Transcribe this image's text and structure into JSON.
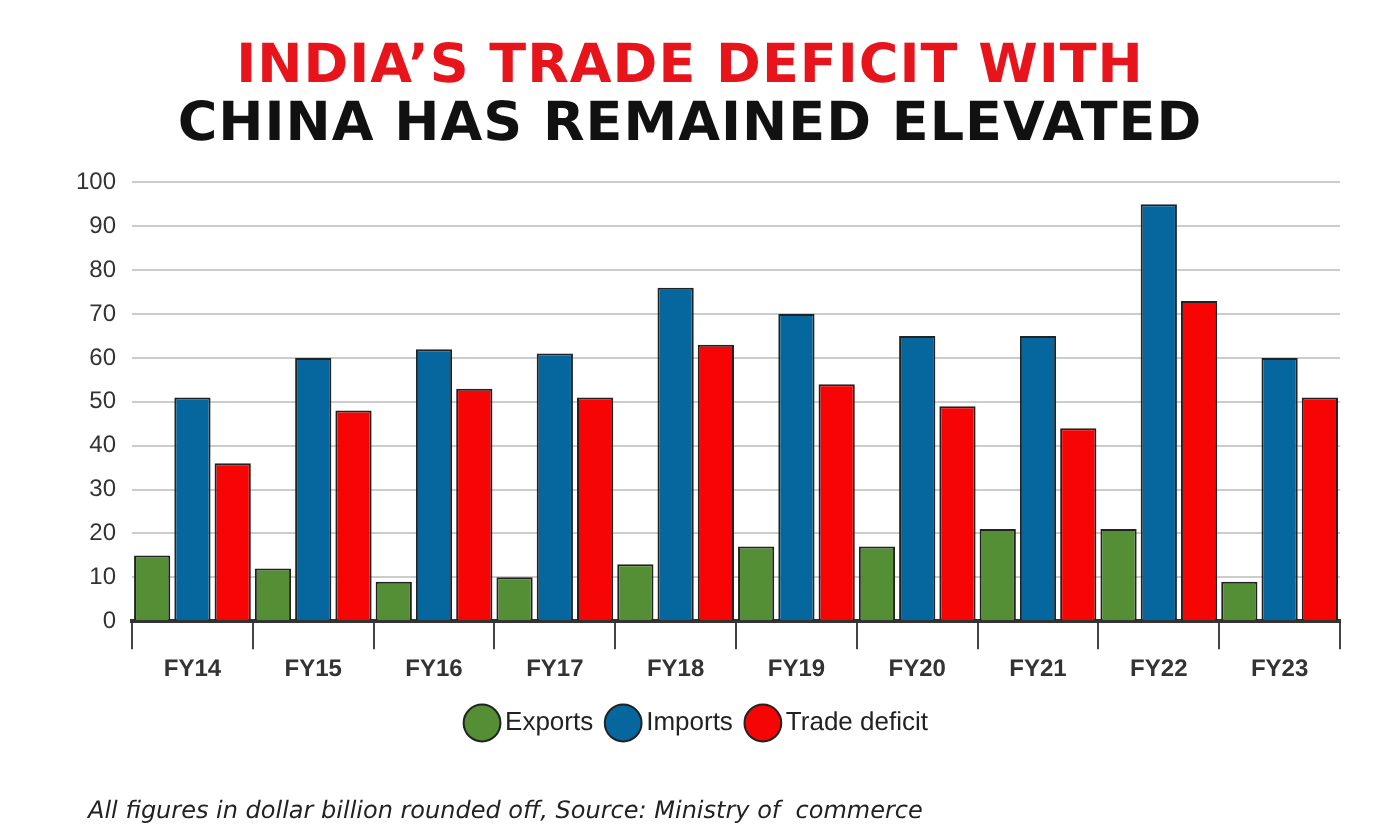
{
  "chart_data": {
    "type": "bar",
    "title": "INDIA’S TRADE DEFICIT WITH CHINA HAS REMAINED ELEVATED",
    "categories": [
      "FY14",
      "FY15",
      "FY16",
      "FY17",
      "FY18",
      "FY19",
      "FY20",
      "FY21",
      "FY22",
      "FY23"
    ],
    "series": [
      {
        "name": "Exports",
        "color": "#548e35",
        "values": [
          15,
          12,
          9,
          10,
          13,
          17,
          17,
          21,
          21,
          9
        ]
      },
      {
        "name": "Imports",
        "color": "#05679e",
        "values": [
          51,
          60,
          62,
          61,
          76,
          70,
          65,
          65,
          95,
          60
        ]
      },
      {
        "name": "Trade deficit",
        "color": "#f70505",
        "values": [
          36,
          48,
          53,
          51,
          63,
          54,
          49,
          44,
          73,
          51
        ]
      }
    ],
    "ylim": [
      0,
      100
    ],
    "yticks": [
      0,
      10,
      20,
      30,
      40,
      50,
      60,
      70,
      80,
      90,
      100
    ],
    "grid": "y",
    "legend": "bottom",
    "annotations": [
      "All figures in dollar billion rounded off, Source: Ministry of  commerce"
    ]
  }
}
